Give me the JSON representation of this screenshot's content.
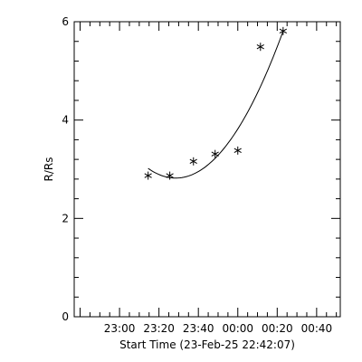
{
  "chart_data": {
    "type": "scatter",
    "title": "",
    "xlabel": "Start Time (23-Feb-25 22:42:07)",
    "ylabel": "R/Rs",
    "x_tick_labels": [
      "23:00",
      "23:20",
      "23:40",
      "00:00",
      "00:20",
      "00:40"
    ],
    "x_tick_minutes_from_ref": [
      18,
      38,
      58,
      78,
      98,
      118
    ],
    "y_tick_labels": [
      "0",
      "2",
      "4",
      "6"
    ],
    "xlim_minutes_from_ref": [
      -5,
      130
    ],
    "ylim": [
      0,
      6
    ],
    "grid": false,
    "series": [
      {
        "marker": "asterisk",
        "times": [
          "23:15",
          "23:25",
          "23:37",
          "23:48",
          "00:00",
          "00:12",
          "00:23"
        ],
        "x_minutes_from_ref": [
          32.5,
          43.5,
          55.5,
          66.5,
          78.0,
          89.5,
          101.0
        ],
        "y": [
          2.87,
          2.87,
          3.16,
          3.31,
          3.38,
          5.49,
          5.81
        ]
      }
    ],
    "fit": {
      "type": "quadratic",
      "x_range_minutes_from_ref": [
        32.5,
        101.0
      ],
      "y_at_range_start": 2.95,
      "y_min_point": [
        46.5,
        2.82
      ],
      "y_at_range_end": 5.81
    }
  }
}
